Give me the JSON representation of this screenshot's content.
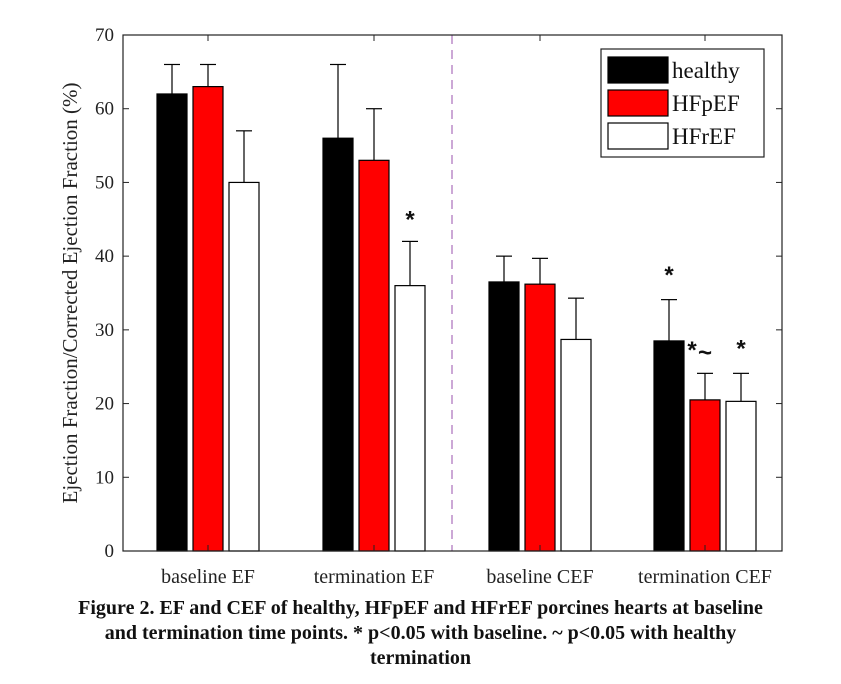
{
  "chart_data": {
    "type": "bar",
    "ylabel": "Ejection Fraction/Corrected Ejection Fraction (%)",
    "ylim": [
      0,
      70
    ],
    "yticks": [
      0,
      10,
      20,
      30,
      40,
      50,
      60,
      70
    ],
    "categories": [
      "baseline EF",
      "termination EF",
      "baseline CEF",
      "termination CEF"
    ],
    "series": [
      {
        "name": "healthy",
        "color": "#000000",
        "values": [
          62,
          56,
          36.5,
          28.5
        ],
        "errors": [
          4,
          10,
          3.5,
          5.6
        ]
      },
      {
        "name": "HFpEF",
        "color": "#ff0000",
        "values": [
          63,
          53,
          36.2,
          20.5
        ],
        "errors": [
          3,
          7,
          3.5,
          3.6
        ]
      },
      {
        "name": "HFrEF",
        "color": "#ffffff",
        "values": [
          50,
          36,
          28.7,
          20.3
        ],
        "errors": [
          7,
          6,
          5.6,
          3.8
        ]
      }
    ],
    "annotations": [
      {
        "text": "*",
        "category": 1,
        "series": 2,
        "y": 45.5
      },
      {
        "text": "*",
        "category": 3,
        "series": 0,
        "y": 38
      },
      {
        "text": "*",
        "category": 3,
        "series": 0,
        "y": 27.8,
        "side": "right"
      },
      {
        "text": "~",
        "category": 3,
        "series": 1,
        "y": 27.5
      },
      {
        "text": "*",
        "category": 3,
        "series": 2,
        "y": 28
      }
    ],
    "divider_after_category": 1,
    "legend_position": "top-right",
    "grid": false
  },
  "caption": {
    "line1": "Figure 2. EF and CEF of healthy, HFpEF and HFrEF porcines hearts at baseline",
    "line2": "and termination time points. * p<0.05 with baseline. ~ p<0.05 with healthy",
    "line3": "termination"
  }
}
